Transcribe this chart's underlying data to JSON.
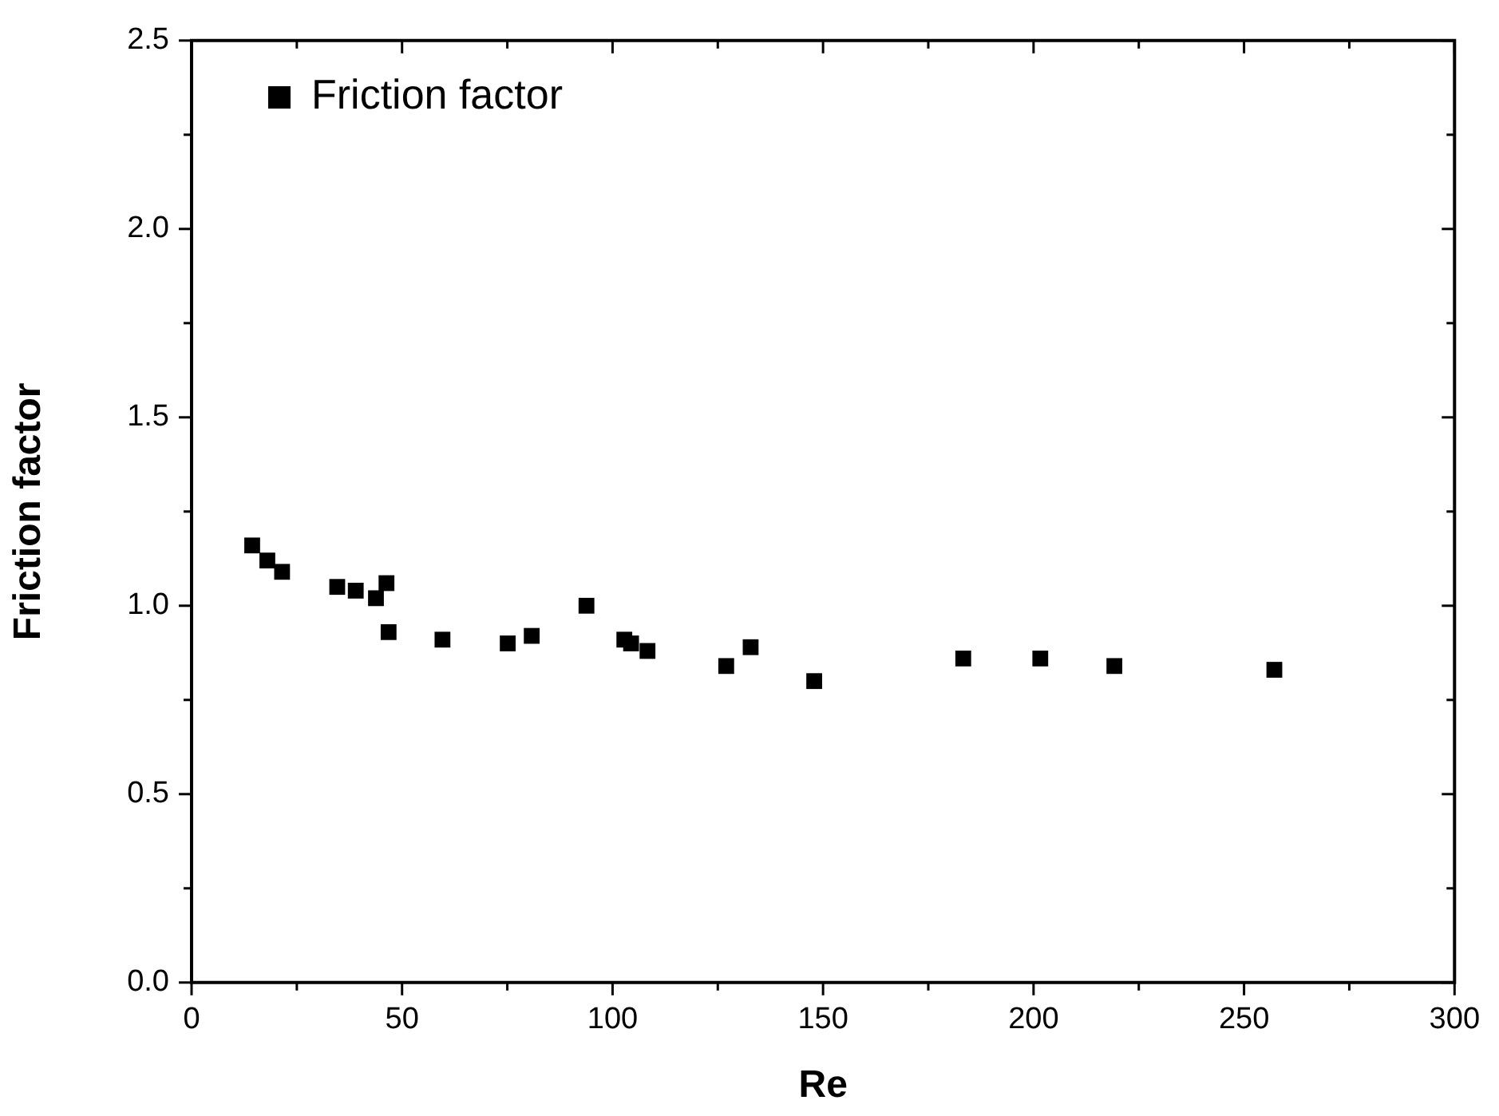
{
  "chart_data": {
    "type": "scatter",
    "xlabel": "Re",
    "ylabel": "Friction factor",
    "xlim": [
      0,
      300
    ],
    "xticks": [
      0,
      50,
      100,
      150,
      200,
      250,
      300
    ],
    "ylim": [
      0,
      2.5
    ],
    "yticks": [
      {
        "value": 0,
        "label": "0.0"
      },
      0.5,
      {
        "value": 1,
        "label": "1.0"
      },
      1.5,
      {
        "value": 2,
        "label": "2.0"
      },
      2.5
    ],
    "grid": false,
    "legend": "top left",
    "marker": "square",
    "series": [
      {
        "name": "Friction factor",
        "color": "#000000",
        "x": [
          14.4,
          18.0,
          21.5,
          34.6,
          39.0,
          43.8,
          46.3,
          46.8,
          59.6,
          75.1,
          80.8,
          93.8,
          102.8,
          104.4,
          108.3,
          127.0,
          132.8,
          147.9,
          183.3,
          201.6,
          219.2,
          257.2
        ],
        "values": [
          1.16,
          1.12,
          1.09,
          1.05,
          1.04,
          1.02,
          1.06,
          0.93,
          0.91,
          0.9,
          0.92,
          1.0,
          0.91,
          0.9,
          0.88,
          0.84,
          0.89,
          0.8,
          0.86,
          0.86,
          0.84,
          0.83
        ]
      }
    ]
  }
}
